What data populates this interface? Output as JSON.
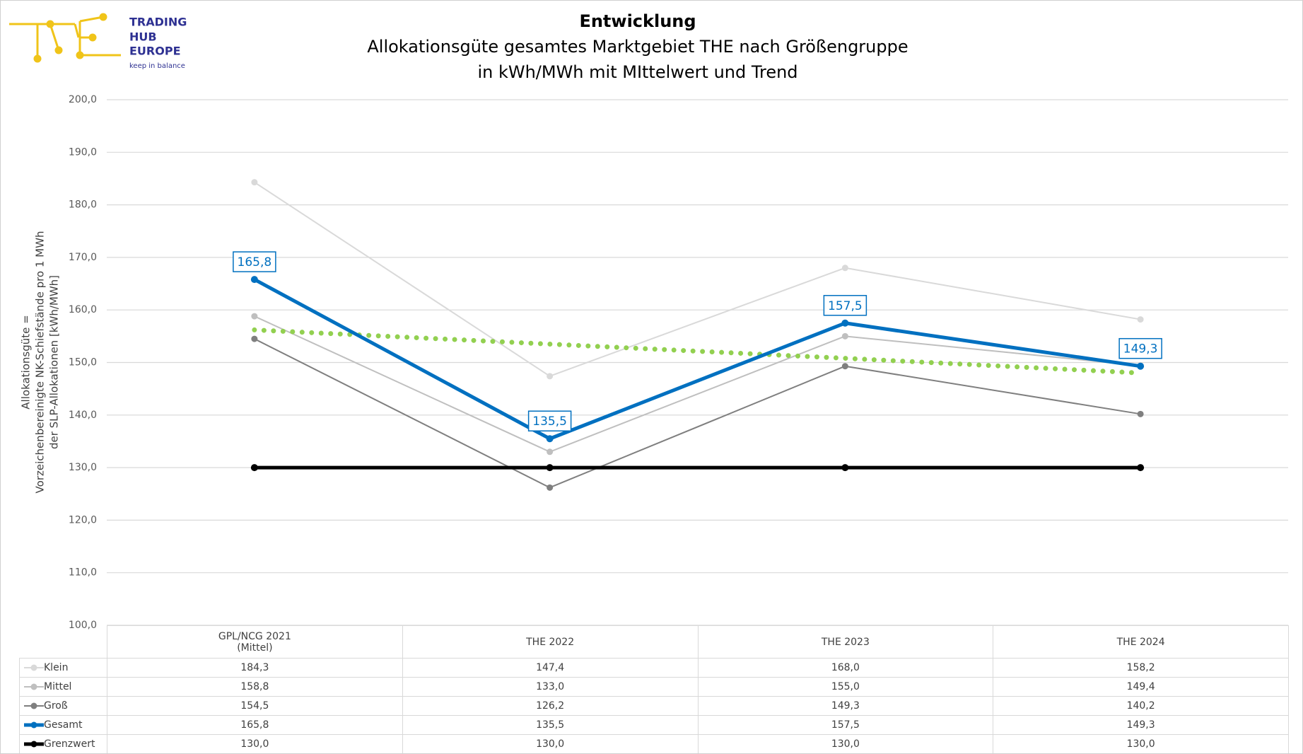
{
  "logo": {
    "lines": [
      "TRADING",
      "HUB",
      "EUROPE"
    ],
    "tagline": "keep in balance"
  },
  "chart_data": {
    "type": "line",
    "title": "Entwicklung",
    "subtitle": [
      "Allokationsgüte gesamtes Marktgebiet THE nach Größengruppe",
      "in kWh/MWh mit MIttelwert und Trend"
    ],
    "y_label": [
      "Allokationsgüte =",
      "Vorzeichenbereinigte NK-Schiefstände pro 1 MWh",
      "der SLP-Allokationen [kWh/MWh]"
    ],
    "categories": [
      "GPL/NCG 2021\n(Mittel)",
      "THE 2022",
      "THE 2023",
      "THE 2024"
    ],
    "series": [
      {
        "name": "Klein",
        "color": "#d9d9d9",
        "line_width": 2,
        "values": [
          184.3,
          147.4,
          168.0,
          158.2
        ],
        "value_labels": [
          "184,3",
          "147,4",
          "168,0",
          "158,2"
        ]
      },
      {
        "name": "Mittel",
        "color": "#bfbfbf",
        "line_width": 2,
        "values": [
          158.8,
          133.0,
          155.0,
          149.4
        ],
        "value_labels": [
          "158,8",
          "133,0",
          "155,0",
          "149,4"
        ]
      },
      {
        "name": "Groß",
        "color": "#7f7f7f",
        "line_width": 2,
        "values": [
          154.5,
          126.2,
          149.3,
          140.2
        ],
        "value_labels": [
          "154,5",
          "126,2",
          "149,3",
          "140,2"
        ]
      },
      {
        "name": "Gesamt",
        "color": "#0070c0",
        "line_width": 5,
        "data_labels": true,
        "values": [
          165.8,
          135.5,
          157.5,
          149.3
        ],
        "value_labels": [
          "165,8",
          "135,5",
          "157,5",
          "149,3"
        ]
      },
      {
        "name": "Grenzwert",
        "color": "#000000",
        "line_width": 5,
        "values": [
          130.0,
          130.0,
          130.0,
          130.0
        ],
        "value_labels": [
          "130,0",
          "130,0",
          "130,0",
          "130,0"
        ]
      }
    ],
    "trendline": {
      "color": "#92d050",
      "values": [
        156.2,
        153.5,
        150.8,
        148.0
      ]
    },
    "ylim": [
      100,
      200
    ],
    "yticks": [
      {
        "value": 100,
        "label": "100,0"
      },
      {
        "value": 110,
        "label": "110,0"
      },
      {
        "value": 120,
        "label": "120,0"
      },
      {
        "value": 130,
        "label": "130,0"
      },
      {
        "value": 140,
        "label": "140,0"
      },
      {
        "value": 150,
        "label": "150,0"
      },
      {
        "value": 160,
        "label": "160,0"
      },
      {
        "value": 170,
        "label": "170,0"
      },
      {
        "value": 180,
        "label": "180,0"
      },
      {
        "value": 190,
        "label": "190,0"
      },
      {
        "value": 200,
        "label": "200,0"
      }
    ],
    "grid": true
  }
}
